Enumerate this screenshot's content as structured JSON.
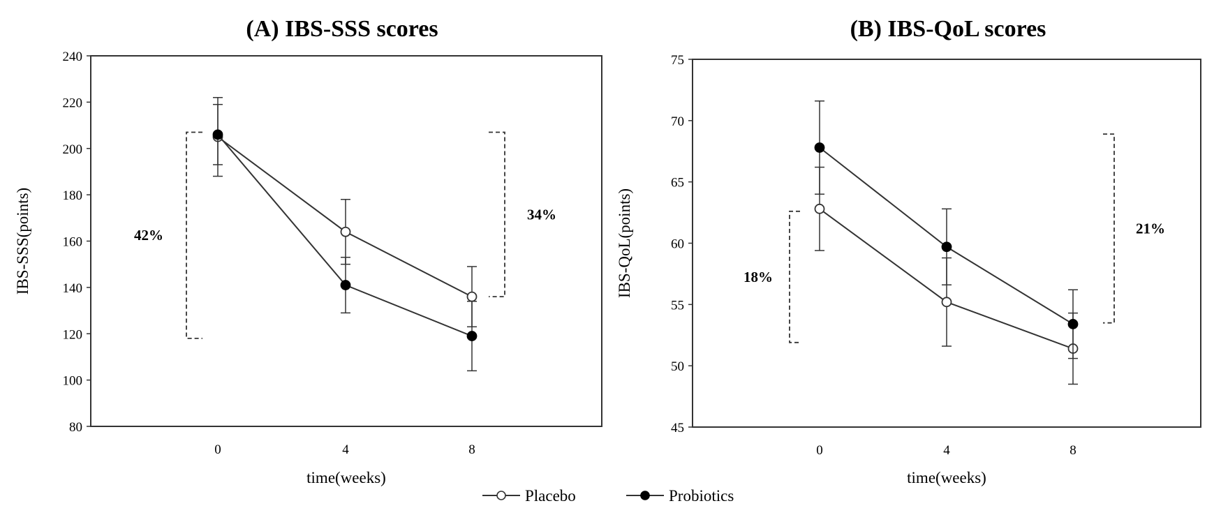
{
  "colors": {
    "line": "#333333",
    "placebo_fill": "#ffffff",
    "probiotics_fill": "#000000",
    "background": "#ffffff"
  },
  "legend": {
    "placebo": "Placebo",
    "probiotics": "Probiotics"
  },
  "chart_data": [
    {
      "type": "line",
      "panel": "A",
      "title": "(A) IBS-SSS scores",
      "xlabel": "time(weeks)",
      "ylabel": "IBS-SSS(points)",
      "categories": [
        "0",
        "4",
        "8"
      ],
      "ylim": [
        80,
        240
      ],
      "yticks": [
        80,
        100,
        120,
        140,
        160,
        180,
        200,
        220,
        240
      ],
      "grid": false,
      "series": [
        {
          "name": "Placebo",
          "marker": "open-circle",
          "values": [
            205,
            164,
            136
          ],
          "error": [
            17,
            14,
            13
          ]
        },
        {
          "name": "Probiotics",
          "marker": "filled-circle",
          "values": [
            206,
            141,
            119
          ],
          "error": [
            13,
            12,
            15
          ]
        }
      ],
      "annotations": [
        {
          "text": "42%",
          "side": "left",
          "y_from": 207,
          "y_to": 118
        },
        {
          "text": "34%",
          "side": "right",
          "y_from": 207,
          "y_to": 136
        }
      ]
    },
    {
      "type": "line",
      "panel": "B",
      "title": "(B) IBS-QoL scores",
      "xlabel": "time(weeks)",
      "ylabel": "IBS-QoL(points)",
      "categories": [
        "0",
        "4",
        "8"
      ],
      "ylim": [
        45,
        75
      ],
      "yticks": [
        45,
        50,
        55,
        60,
        65,
        70,
        75
      ],
      "grid": false,
      "series": [
        {
          "name": "Placebo",
          "marker": "open-circle",
          "values": [
            62.8,
            55.2,
            51.4
          ],
          "error": [
            3.4,
            3.6,
            2.9
          ]
        },
        {
          "name": "Probiotics",
          "marker": "filled-circle",
          "values": [
            67.8,
            59.7,
            53.4
          ],
          "error": [
            3.8,
            3.1,
            2.8
          ]
        }
      ],
      "annotations": [
        {
          "text": "18%",
          "side": "left",
          "y_from": 62.6,
          "y_to": 51.9
        },
        {
          "text": "21%",
          "side": "right",
          "y_from": 68.9,
          "y_to": 53.5
        }
      ]
    }
  ]
}
